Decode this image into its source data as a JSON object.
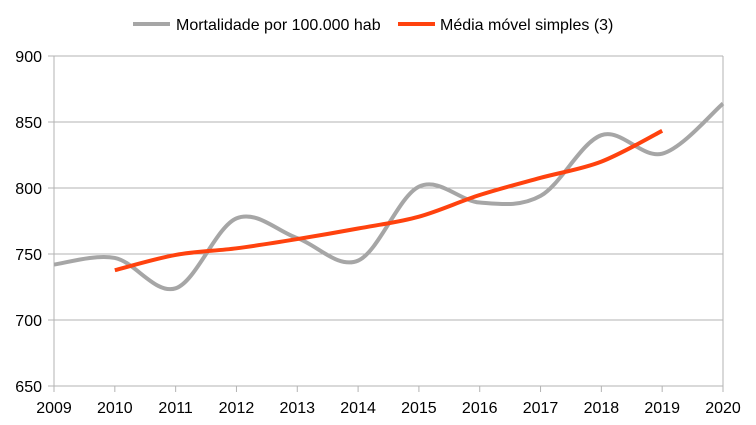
{
  "chart_data": {
    "type": "line",
    "title": "",
    "xlabel": "",
    "ylabel": "",
    "x": [
      2009,
      2010,
      2011,
      2012,
      2013,
      2014,
      2015,
      2016,
      2017,
      2018,
      2019,
      2020
    ],
    "xlim": [
      2009,
      2020
    ],
    "ylim": [
      650,
      900
    ],
    "y_ticks": [
      650,
      700,
      750,
      800,
      850,
      900
    ],
    "x_tick_labels": [
      "2009",
      "2010",
      "2011",
      "2012",
      "2013",
      "2014",
      "2015",
      "2016",
      "2017",
      "2018",
      "2019",
      "2020"
    ],
    "y_tick_labels": [
      "650",
      "700",
      "750",
      "800",
      "850",
      "900"
    ],
    "grid": "horizontal",
    "legend_position": "top",
    "series": [
      {
        "name": "Mortalidade por 100.000 hab",
        "color": "#a6a6a6",
        "smooth": true,
        "x": [
          2009,
          2010,
          2011,
          2012,
          2013,
          2014,
          2015,
          2016,
          2017,
          2018,
          2019,
          2020
        ],
        "values": [
          742,
          747,
          724,
          777,
          762,
          745,
          801,
          789,
          794,
          840,
          826,
          864
        ]
      },
      {
        "name": "Média móvel simples (3)",
        "color": "#ff420e",
        "smooth": true,
        "x": [
          2010,
          2011,
          2012,
          2013,
          2014,
          2015,
          2016,
          2017,
          2018,
          2019
        ],
        "values": [
          737.7,
          749.3,
          754.3,
          761.3,
          769.3,
          778.3,
          794.7,
          807.7,
          820.0,
          843.3
        ]
      }
    ]
  }
}
